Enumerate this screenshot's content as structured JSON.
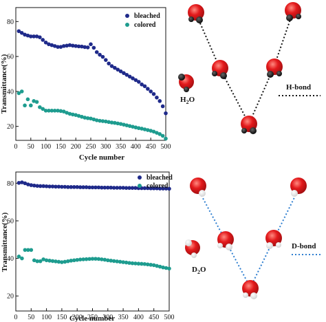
{
  "colors": {
    "bleached": "#1f2a8a",
    "colored": "#1e9c8f",
    "h_bond_line": "#111111",
    "d_bond_line": "#2f7fd0",
    "oxygen": "#e31a1c"
  },
  "chart_data": [
    {
      "type": "scatter",
      "panel": "top",
      "title": "",
      "xlabel": "Cycle number",
      "ylabel": "Transmittance(%)",
      "xlim": [
        0,
        500
      ],
      "ylim": [
        12,
        88
      ],
      "xticks": [
        0,
        50,
        100,
        150,
        200,
        250,
        300,
        350,
        400,
        450,
        500
      ],
      "yticks": [
        20,
        40,
        60,
        80
      ],
      "grid": false,
      "legend_position": "top-right",
      "series": [
        {
          "name": "bleached",
          "x": [
            10,
            20,
            30,
            40,
            50,
            60,
            70,
            80,
            90,
            100,
            110,
            120,
            130,
            140,
            150,
            160,
            170,
            180,
            190,
            200,
            210,
            220,
            230,
            240,
            250,
            260,
            270,
            280,
            290,
            300,
            310,
            320,
            330,
            340,
            350,
            360,
            370,
            380,
            390,
            400,
            410,
            420,
            430,
            440,
            450,
            460,
            470,
            480,
            490,
            500
          ],
          "values": [
            74.5,
            73.5,
            72.5,
            72,
            71.5,
            71.5,
            71.5,
            71,
            69.5,
            68,
            67,
            66.5,
            66,
            65.5,
            65.5,
            66,
            66.2,
            66.5,
            66.2,
            66,
            65.8,
            65.7,
            65.4,
            65.2,
            67,
            65,
            62.5,
            61,
            59.8,
            58,
            56,
            54.5,
            53.5,
            52.5,
            51.5,
            50.5,
            49.5,
            48.5,
            47.5,
            46.5,
            45.5,
            44,
            43,
            41.5,
            40,
            38.5,
            36.5,
            34.5,
            31.5,
            27.5
          ]
        },
        {
          "name": "colored",
          "x": [
            10,
            20,
            30,
            40,
            50,
            60,
            70,
            80,
            90,
            100,
            110,
            120,
            130,
            140,
            150,
            160,
            170,
            180,
            190,
            200,
            210,
            220,
            230,
            240,
            250,
            260,
            270,
            280,
            290,
            300,
            310,
            320,
            330,
            340,
            350,
            360,
            370,
            380,
            390,
            400,
            410,
            420,
            430,
            440,
            450,
            460,
            470,
            480,
            490,
            500
          ],
          "values": [
            39,
            40,
            32,
            35.5,
            32,
            34.5,
            34,
            31,
            30,
            29,
            29,
            29,
            29,
            29,
            28.8,
            28.5,
            27.8,
            27.2,
            26.8,
            26.5,
            26,
            25.5,
            25,
            24.7,
            24.5,
            24,
            23.5,
            23.2,
            23,
            22.8,
            22.5,
            22.2,
            22,
            21.7,
            21.4,
            21,
            20.6,
            20.2,
            19.8,
            19.4,
            19,
            18.7,
            18.3,
            17.9,
            17.5,
            17,
            16.3,
            15.6,
            14.6,
            13
          ]
        }
      ]
    },
    {
      "type": "scatter",
      "panel": "bottom",
      "title": "",
      "xlabel": "Cycle number",
      "ylabel": "Transmittance(%)",
      "xlim": [
        0,
        500
      ],
      "ylim": [
        12,
        86
      ],
      "xticks": [
        0,
        50,
        100,
        150,
        200,
        250,
        300,
        350,
        400,
        450,
        500
      ],
      "yticks": [
        20,
        40,
        60,
        80
      ],
      "grid": false,
      "legend_position": "top-right",
      "series": [
        {
          "name": "bleached",
          "x": [
            10,
            20,
            30,
            40,
            50,
            60,
            70,
            80,
            90,
            100,
            110,
            120,
            130,
            140,
            150,
            160,
            170,
            180,
            190,
            200,
            210,
            220,
            230,
            240,
            250,
            260,
            270,
            280,
            290,
            300,
            310,
            320,
            330,
            340,
            350,
            360,
            370,
            380,
            390,
            400,
            410,
            420,
            430,
            440,
            450,
            460,
            470,
            480,
            490,
            500
          ],
          "values": [
            80.2,
            80.5,
            80,
            79.4,
            79,
            78.8,
            78.6,
            78.5,
            78.5,
            78.4,
            78.3,
            78.3,
            78.2,
            78.2,
            78.1,
            78.1,
            78,
            78,
            78,
            78,
            77.9,
            77.9,
            77.9,
            77.8,
            77.8,
            77.8,
            77.8,
            77.7,
            77.7,
            77.7,
            77.7,
            77.6,
            77.6,
            77.6,
            77.6,
            77.5,
            77.5,
            77.5,
            77.5,
            77.4,
            77.4,
            77.4,
            77.4,
            77.3,
            77.3,
            77.3,
            77.2,
            77.2,
            77.2,
            77.1
          ]
        },
        {
          "name": "colored",
          "x": [
            10,
            20,
            30,
            40,
            50,
            60,
            70,
            80,
            90,
            100,
            110,
            120,
            130,
            140,
            150,
            160,
            170,
            180,
            190,
            200,
            210,
            220,
            230,
            240,
            250,
            260,
            270,
            280,
            290,
            300,
            310,
            320,
            330,
            340,
            350,
            360,
            370,
            380,
            390,
            400,
            410,
            420,
            430,
            440,
            450,
            460,
            470,
            480,
            490,
            500
          ],
          "values": [
            41,
            40,
            44.5,
            44.5,
            44.5,
            39,
            38.5,
            38.5,
            39.5,
            39,
            38.8,
            38.6,
            38.4,
            38.2,
            38,
            38.2,
            38.5,
            38.8,
            39,
            39.2,
            39.4,
            39.5,
            39.6,
            39.7,
            39.8,
            39.8,
            39.7,
            39.5,
            39.3,
            39,
            38.8,
            38.6,
            38.4,
            38.2,
            38,
            37.8,
            37.6,
            37.4,
            37.3,
            37.2,
            37.1,
            37,
            36.8,
            36.6,
            36.4,
            36,
            35.6,
            35.2,
            34.9,
            34.6
          ]
        }
      ]
    }
  ],
  "diagrams": {
    "top": {
      "molecule_label": "H",
      "molecule_subscript": "2",
      "molecule_suffix": "O",
      "bond_label": "H-bond"
    },
    "bottom": {
      "molecule_label": "D",
      "molecule_subscript": "2",
      "molecule_suffix": "O",
      "bond_label": "D-bond"
    }
  }
}
